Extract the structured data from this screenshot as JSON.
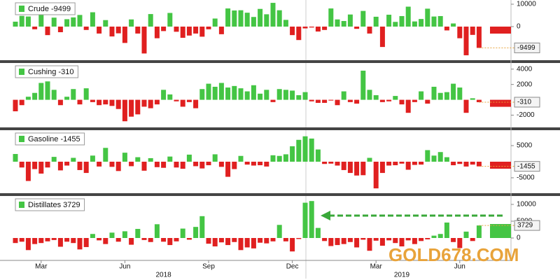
{
  "chart_data": [
    {
      "type": "bar",
      "legend": "Crude -9499",
      "latest": -9499,
      "ylim": [
        -15000,
        11875
      ],
      "yticks": [
        0,
        10000
      ],
      "grid": false,
      "colors": {
        "positive": "#44c544",
        "negative": "#e02020"
      },
      "values": [
        2200,
        4800,
        4500,
        -1200,
        5400,
        -3800,
        4000,
        -2500,
        3300,
        4100,
        5200,
        -1500,
        6400,
        -3100,
        2900,
        -4400,
        -3000,
        -7300,
        3200,
        -3100,
        -12000,
        5600,
        -5200,
        -2000,
        6100,
        -2300,
        -5000,
        -4000,
        -3100,
        -4500,
        -1200,
        3600,
        -3400,
        8100,
        7200,
        7300,
        6200,
        4300,
        7900,
        5500,
        10600,
        7300,
        3000,
        -3800,
        -6000,
        -800,
        -400,
        -2200,
        -1500,
        8100,
        3200,
        2500,
        5400,
        -1000,
        7000,
        -3100,
        4400,
        -9100,
        5300,
        2100,
        4700,
        8900,
        2300,
        3400,
        8000,
        4500,
        4700,
        -1700,
        1400,
        -5200,
        -12800,
        -3700,
        -9499
      ]
    },
    {
      "type": "bar",
      "legend": "Cushing -310",
      "latest": -310,
      "ylim": [
        -3600,
        4800
      ],
      "yticks": [
        -2000,
        2000,
        4000
      ],
      "grid": false,
      "colors": {
        "positive": "#44c544",
        "negative": "#e02020"
      },
      "values": [
        -1500,
        -700,
        400,
        900,
        2200,
        2400,
        1300,
        -700,
        400,
        1400,
        -600,
        1500,
        -300,
        -700,
        -600,
        -800,
        -1200,
        -2800,
        -2200,
        -1900,
        -900,
        -1100,
        -600,
        1300,
        700,
        -200,
        -900,
        -300,
        -1100,
        1400,
        2100,
        1700,
        2200,
        1600,
        1800,
        1500,
        1100,
        1900,
        800,
        1300,
        -300,
        1400,
        1300,
        1200,
        600,
        1000,
        -200,
        -400,
        -400,
        -100,
        -700,
        1100,
        -300,
        -500,
        3800,
        1300,
        600,
        -300,
        -200,
        500,
        -600,
        -1700,
        -300,
        1100,
        -500,
        1700,
        900,
        1000,
        2100,
        1600,
        -1700,
        200,
        -310
      ]
    },
    {
      "type": "bar",
      "legend": "Gasoline -1455",
      "latest": -1455,
      "ylim": [
        -9800,
        9800
      ],
      "yticks": [
        -5000,
        5000
      ],
      "grid": false,
      "colors": {
        "positive": "#44c544",
        "negative": "#e02020"
      },
      "values": [
        2400,
        -1800,
        -6000,
        -2300,
        -3700,
        -1800,
        1500,
        -2700,
        -1200,
        1200,
        -2600,
        -3500,
        1900,
        -1500,
        4300,
        -1600,
        -2900,
        2800,
        -1400,
        1400,
        -2800,
        1100,
        -1700,
        -1900,
        1600,
        -1800,
        -2200,
        2200,
        -1400,
        -2100,
        -1100,
        2300,
        -1600,
        -4700,
        -2300,
        1800,
        -900,
        -1200,
        -1100,
        -1500,
        2000,
        1800,
        2300,
        4800,
        6800,
        7900,
        7200,
        3800,
        -700,
        -600,
        -1200,
        -2600,
        -3500,
        -4300,
        -4200,
        1200,
        -8300,
        -3500,
        -1200,
        -1100,
        -600,
        -2500,
        -1000,
        -900,
        3600,
        1900,
        3000,
        1400,
        -1100,
        -700,
        -1500,
        -900,
        -1455
      ]
    },
    {
      "type": "bar",
      "legend": "Distillates 3729",
      "latest": 3729,
      "ylim": [
        -6250,
        12500
      ],
      "yticks": [
        0,
        5000,
        10000
      ],
      "grid": false,
      "colors": {
        "positive": "#44c544",
        "negative": "#e02020"
      },
      "values": [
        -1500,
        -1100,
        -3600,
        -1800,
        -1500,
        -1000,
        -600,
        -2600,
        -1100,
        -1500,
        -3400,
        -2700,
        1200,
        -700,
        -1800,
        1600,
        -1100,
        2000,
        -2000,
        2700,
        -600,
        -1200,
        4100,
        -1100,
        -2100,
        -1000,
        2800,
        -500,
        3300,
        6500,
        -1700,
        -2500,
        -1300,
        -2100,
        -1200,
        -3600,
        -2800,
        -3100,
        -1400,
        -1600,
        -1000,
        3900,
        -1000,
        -4000,
        -300,
        10500,
        11000,
        3000,
        -900,
        -2400,
        -2100,
        -1800,
        -1200,
        -2800,
        -500,
        -3800,
        -800,
        -2300,
        -700,
        -1500,
        -2500,
        -700,
        -1800,
        -900,
        -400,
        700,
        1200,
        4600,
        -1200,
        -3000,
        1900,
        -900,
        3729
      ],
      "categories": [
        null,
        null,
        null,
        null,
        "Mar",
        null,
        null,
        null,
        null,
        null,
        null,
        null,
        null,
        null,
        null,
        null,
        null,
        "Jun",
        null,
        null,
        null,
        null,
        null,
        null,
        null,
        null,
        null,
        null,
        null,
        null,
        "Sep",
        null,
        null,
        null,
        null,
        null,
        null,
        null,
        null,
        null,
        null,
        null,
        null,
        "Dec",
        null,
        null,
        null,
        null,
        null,
        null,
        null,
        null,
        null,
        null,
        null,
        null,
        "Mar",
        null,
        null,
        null,
        null,
        null,
        null,
        null,
        null,
        null,
        null,
        null,
        null,
        "Jun",
        null,
        null,
        null
      ],
      "year_categories": [
        null,
        null,
        null,
        null,
        null,
        null,
        null,
        null,
        null,
        null,
        null,
        null,
        null,
        null,
        null,
        null,
        null,
        null,
        null,
        null,
        null,
        null,
        null,
        "2018",
        null,
        null,
        null,
        null,
        null,
        null,
        null,
        null,
        null,
        null,
        null,
        null,
        null,
        null,
        null,
        null,
        null,
        null,
        null,
        null,
        null,
        null,
        null,
        null,
        null,
        null,
        null,
        null,
        null,
        null,
        null,
        null,
        null,
        null,
        null,
        null,
        "2019",
        null,
        null,
        null,
        null,
        null,
        null,
        null,
        null,
        null,
        null,
        null,
        null
      ],
      "watermark": "GOLD678.COM"
    }
  ]
}
